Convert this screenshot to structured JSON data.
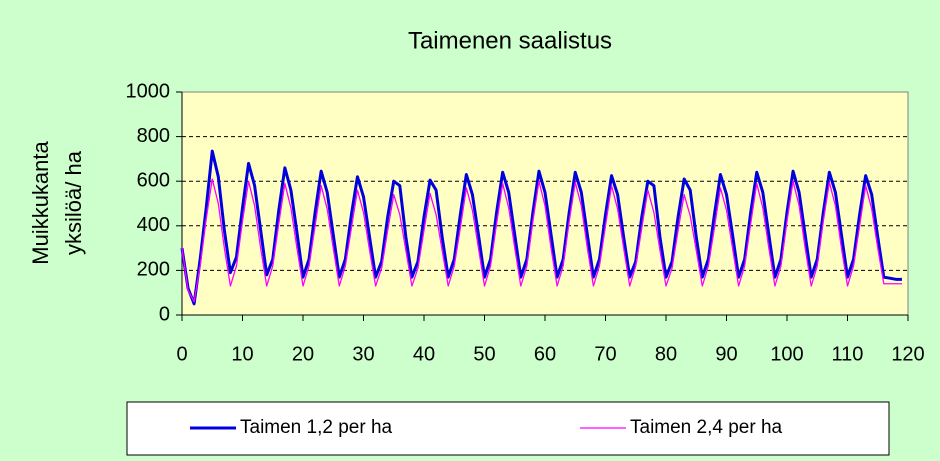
{
  "chart_data": {
    "type": "line",
    "title": "Taimenen saalistus",
    "ylabel": [
      "Muikkukanta",
      "yksilöä/ ha"
    ],
    "x": [
      0,
      1,
      2,
      3,
      4,
      5,
      6,
      7,
      8,
      9,
      10,
      11,
      12,
      13,
      14,
      15,
      16,
      17,
      18,
      19,
      20,
      21,
      22,
      23,
      24,
      25,
      26,
      27,
      28,
      29,
      30,
      31,
      32,
      33,
      34,
      35,
      36,
      37,
      38,
      39,
      40,
      41,
      42,
      43,
      44,
      45,
      46,
      47,
      48,
      49,
      50,
      51,
      52,
      53,
      54,
      55,
      56,
      57,
      58,
      59,
      60,
      61,
      62,
      63,
      64,
      65,
      66,
      67,
      68,
      69,
      70,
      71,
      72,
      73,
      74,
      75,
      76,
      77,
      78,
      79,
      80,
      81,
      82,
      83,
      84,
      85,
      86,
      87,
      88,
      89,
      90,
      91,
      92,
      93,
      94,
      95,
      96,
      97,
      98,
      99,
      100,
      101,
      102,
      103,
      104,
      105,
      106,
      107,
      108,
      109,
      110,
      111,
      112,
      113,
      114,
      115,
      116,
      117,
      118,
      119
    ],
    "series": [
      {
        "name": "Taimen 1,2 per ha",
        "color": "#0000dd",
        "width": 3,
        "values": [
          300,
          120,
          50,
          250,
          480,
          735,
          620,
          380,
          190,
          260,
          480,
          680,
          580,
          380,
          180,
          250,
          470,
          660,
          560,
          370,
          170,
          250,
          460,
          645,
          550,
          360,
          170,
          250,
          450,
          620,
          530,
          350,
          170,
          240,
          440,
          600,
          580,
          350,
          170,
          240,
          440,
          605,
          560,
          350,
          170,
          250,
          450,
          630,
          540,
          360,
          170,
          250,
          460,
          640,
          550,
          360,
          170,
          250,
          460,
          645,
          550,
          360,
          170,
          250,
          460,
          640,
          550,
          360,
          170,
          250,
          450,
          625,
          540,
          350,
          170,
          240,
          440,
          600,
          580,
          350,
          170,
          240,
          440,
          610,
          560,
          350,
          170,
          250,
          450,
          630,
          540,
          360,
          170,
          250,
          460,
          640,
          550,
          360,
          170,
          250,
          460,
          645,
          550,
          360,
          170,
          250,
          460,
          640,
          550,
          360,
          170,
          250,
          450,
          625,
          540,
          350,
          170,
          165,
          160,
          160
        ]
      },
      {
        "name": "Taimen 2,4 per ha",
        "color": "#ff00ff",
        "width": 1.3,
        "values": [
          300,
          110,
          60,
          220,
          430,
          610,
          500,
          300,
          130,
          220,
          420,
          600,
          490,
          300,
          130,
          220,
          410,
          590,
          480,
          300,
          130,
          220,
          400,
          580,
          475,
          300,
          130,
          220,
          390,
          560,
          460,
          290,
          130,
          210,
          380,
          540,
          450,
          290,
          130,
          210,
          380,
          545,
          450,
          290,
          130,
          220,
          390,
          570,
          470,
          300,
          130,
          220,
          410,
          590,
          480,
          300,
          130,
          220,
          420,
          600,
          490,
          300,
          130,
          220,
          420,
          595,
          490,
          300,
          130,
          220,
          400,
          580,
          475,
          300,
          130,
          220,
          390,
          560,
          460,
          290,
          130,
          210,
          380,
          540,
          445,
          290,
          130,
          220,
          390,
          570,
          470,
          300,
          130,
          220,
          410,
          590,
          480,
          300,
          130,
          220,
          420,
          600,
          490,
          300,
          130,
          220,
          420,
          595,
          490,
          300,
          130,
          220,
          400,
          580,
          475,
          300,
          140,
          140,
          140,
          140
        ]
      }
    ],
    "xlim": [
      0,
      120
    ],
    "xticks": [
      0,
      10,
      20,
      30,
      40,
      50,
      60,
      70,
      80,
      90,
      100,
      110,
      120
    ],
    "ylim": [
      0,
      1000
    ],
    "yticks": [
      0,
      200,
      400,
      600,
      800,
      1000
    ],
    "grid": true,
    "legend": "bottom"
  }
}
